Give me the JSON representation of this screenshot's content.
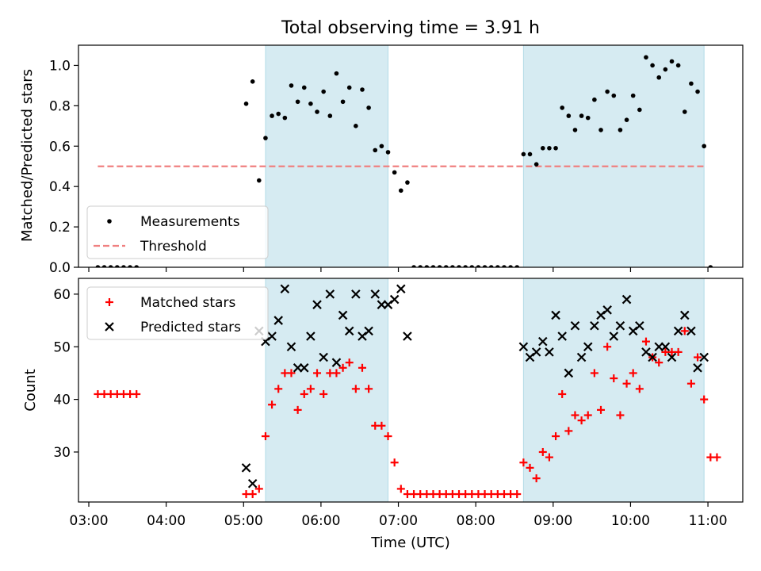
{
  "title": "Total observing time = 3.91 h",
  "colors": {
    "span": "#add8e6",
    "measure": "#000000",
    "threshold": "#f08080",
    "matched": "#ff0000",
    "predicted": "#000000"
  },
  "chart_data": [
    {
      "type": "scatter",
      "panel": "top",
      "ylabel": "Matched/Predicted stars",
      "xlim": [
        "02:52",
        "11:27"
      ],
      "ylim": [
        0,
        1.1
      ],
      "yticks": [
        "0.0",
        "0.2",
        "0.4",
        "0.6",
        "0.8",
        "1.0"
      ],
      "shaded_spans": [
        [
          "05:17",
          "06:52"
        ],
        [
          "08:37",
          "10:57"
        ]
      ],
      "legend": {
        "position": "lower-left",
        "entries": [
          "Measurements",
          "Threshold"
        ]
      },
      "threshold": {
        "name": "Threshold",
        "y": 0.5,
        "x": [
          "03:07",
          "10:59"
        ],
        "style": "dashed"
      },
      "series": [
        {
          "name": "Measurements",
          "marker": "dot",
          "points": [
            [
              "03:07",
              0
            ],
            [
              "03:12",
              0
            ],
            [
              "03:17",
              0
            ],
            [
              "03:22",
              0
            ],
            [
              "03:27",
              0
            ],
            [
              "03:32",
              0
            ],
            [
              "03:37",
              0
            ],
            [
              "05:02",
              0.81
            ],
            [
              "05:07",
              0.92
            ],
            [
              "05:12",
              0.43
            ],
            [
              "05:17",
              0.64
            ],
            [
              "05:22",
              0.75
            ],
            [
              "05:27",
              0.76
            ],
            [
              "05:32",
              0.74
            ],
            [
              "05:37",
              0.9
            ],
            [
              "05:42",
              0.82
            ],
            [
              "05:47",
              0.89
            ],
            [
              "05:52",
              0.81
            ],
            [
              "05:57",
              0.77
            ],
            [
              "06:02",
              0.87
            ],
            [
              "06:07",
              0.75
            ],
            [
              "06:12",
              0.96
            ],
            [
              "06:17",
              0.82
            ],
            [
              "06:22",
              0.89
            ],
            [
              "06:27",
              0.7
            ],
            [
              "06:32",
              0.88
            ],
            [
              "06:37",
              0.79
            ],
            [
              "06:42",
              0.58
            ],
            [
              "06:47",
              0.6
            ],
            [
              "06:52",
              0.57
            ],
            [
              "06:57",
              0.47
            ],
            [
              "07:02",
              0.38
            ],
            [
              "07:07",
              0.42
            ],
            [
              "07:12",
              0
            ],
            [
              "07:17",
              0
            ],
            [
              "07:22",
              0
            ],
            [
              "07:27",
              0
            ],
            [
              "07:32",
              0
            ],
            [
              "07:37",
              0
            ],
            [
              "07:42",
              0
            ],
            [
              "07:47",
              0
            ],
            [
              "07:52",
              0
            ],
            [
              "07:57",
              0
            ],
            [
              "08:02",
              0
            ],
            [
              "08:07",
              0
            ],
            [
              "08:12",
              0
            ],
            [
              "08:17",
              0
            ],
            [
              "08:22",
              0
            ],
            [
              "08:27",
              0
            ],
            [
              "08:32",
              0
            ],
            [
              "08:37",
              0.56
            ],
            [
              "08:42",
              0.56
            ],
            [
              "08:47",
              0.51
            ],
            [
              "08:52",
              0.59
            ],
            [
              "08:57",
              0.59
            ],
            [
              "09:02",
              0.59
            ],
            [
              "09:07",
              0.79
            ],
            [
              "09:12",
              0.75
            ],
            [
              "09:17",
              0.68
            ],
            [
              "09:22",
              0.75
            ],
            [
              "09:27",
              0.74
            ],
            [
              "09:32",
              0.83
            ],
            [
              "09:37",
              0.68
            ],
            [
              "09:42",
              0.87
            ],
            [
              "09:47",
              0.85
            ],
            [
              "09:52",
              0.68
            ],
            [
              "09:57",
              0.73
            ],
            [
              "10:02",
              0.85
            ],
            [
              "10:07",
              0.78
            ],
            [
              "10:12",
              1.04
            ],
            [
              "10:17",
              1.0
            ],
            [
              "10:22",
              0.94
            ],
            [
              "10:27",
              0.98
            ],
            [
              "10:32",
              1.02
            ],
            [
              "10:37",
              1.0
            ],
            [
              "10:42",
              0.77
            ],
            [
              "10:47",
              0.91
            ],
            [
              "10:52",
              0.87
            ],
            [
              "10:57",
              0.6
            ],
            [
              "11:02",
              0
            ]
          ]
        }
      ]
    },
    {
      "type": "scatter",
      "panel": "bottom",
      "xlabel": "Time (UTC)",
      "ylabel": "Count",
      "xlim": [
        "02:52",
        "11:27"
      ],
      "ylim": [
        20.5,
        63
      ],
      "yticks": [
        "30",
        "40",
        "50",
        "60"
      ],
      "xticks": [
        "03:00",
        "04:00",
        "05:00",
        "06:00",
        "07:00",
        "08:00",
        "09:00",
        "10:00",
        "11:00"
      ],
      "shaded_spans": [
        [
          "05:17",
          "06:52"
        ],
        [
          "08:37",
          "10:57"
        ]
      ],
      "legend": {
        "position": "top-left",
        "entries": [
          "Matched stars",
          "Predicted stars"
        ]
      },
      "series": [
        {
          "name": "Matched stars",
          "marker": "plus",
          "points": [
            [
              "03:07",
              41
            ],
            [
              "03:12",
              41
            ],
            [
              "03:17",
              41
            ],
            [
              "03:22",
              41
            ],
            [
              "03:27",
              41
            ],
            [
              "03:32",
              41
            ],
            [
              "03:37",
              41
            ],
            [
              "05:02",
              22
            ],
            [
              "05:07",
              22
            ],
            [
              "05:12",
              23
            ],
            [
              "05:17",
              33
            ],
            [
              "05:22",
              39
            ],
            [
              "05:27",
              42
            ],
            [
              "05:32",
              45
            ],
            [
              "05:37",
              45
            ],
            [
              "05:42",
              38
            ],
            [
              "05:47",
              41
            ],
            [
              "05:52",
              42
            ],
            [
              "05:57",
              45
            ],
            [
              "06:02",
              41
            ],
            [
              "06:07",
              45
            ],
            [
              "06:12",
              45
            ],
            [
              "06:17",
              46
            ],
            [
              "06:22",
              47
            ],
            [
              "06:27",
              42
            ],
            [
              "06:32",
              46
            ],
            [
              "06:37",
              42
            ],
            [
              "06:42",
              35
            ],
            [
              "06:47",
              35
            ],
            [
              "06:52",
              33
            ],
            [
              "06:57",
              28
            ],
            [
              "07:02",
              23
            ],
            [
              "07:07",
              22
            ],
            [
              "07:12",
              22
            ],
            [
              "07:17",
              22
            ],
            [
              "07:22",
              22
            ],
            [
              "07:27",
              22
            ],
            [
              "07:32",
              22
            ],
            [
              "07:37",
              22
            ],
            [
              "07:42",
              22
            ],
            [
              "07:47",
              22
            ],
            [
              "07:52",
              22
            ],
            [
              "07:57",
              22
            ],
            [
              "08:02",
              22
            ],
            [
              "08:07",
              22
            ],
            [
              "08:12",
              22
            ],
            [
              "08:17",
              22
            ],
            [
              "08:22",
              22
            ],
            [
              "08:27",
              22
            ],
            [
              "08:32",
              22
            ],
            [
              "08:37",
              28
            ],
            [
              "08:42",
              27
            ],
            [
              "08:47",
              25
            ],
            [
              "08:52",
              30
            ],
            [
              "08:57",
              29
            ],
            [
              "09:02",
              33
            ],
            [
              "09:07",
              41
            ],
            [
              "09:12",
              34
            ],
            [
              "09:17",
              37
            ],
            [
              "09:22",
              36
            ],
            [
              "09:27",
              37
            ],
            [
              "09:32",
              45
            ],
            [
              "09:37",
              38
            ],
            [
              "09:42",
              50
            ],
            [
              "09:47",
              44
            ],
            [
              "09:52",
              37
            ],
            [
              "09:57",
              43
            ],
            [
              "10:02",
              45
            ],
            [
              "10:07",
              42
            ],
            [
              "10:12",
              51
            ],
            [
              "10:17",
              48
            ],
            [
              "10:22",
              47
            ],
            [
              "10:27",
              49
            ],
            [
              "10:32",
              49
            ],
            [
              "10:37",
              49
            ],
            [
              "10:42",
              53
            ],
            [
              "10:47",
              43
            ],
            [
              "10:52",
              48
            ],
            [
              "10:57",
              40
            ],
            [
              "11:02",
              29
            ],
            [
              "11:07",
              29
            ]
          ]
        },
        {
          "name": "Predicted stars",
          "marker": "x",
          "points": [
            [
              "05:02",
              27
            ],
            [
              "05:07",
              24
            ],
            [
              "05:12",
              53
            ],
            [
              "05:17",
              51
            ],
            [
              "05:22",
              52
            ],
            [
              "05:27",
              55
            ],
            [
              "05:32",
              61
            ],
            [
              "05:37",
              50
            ],
            [
              "05:42",
              46
            ],
            [
              "05:47",
              46
            ],
            [
              "05:52",
              52
            ],
            [
              "05:57",
              58
            ],
            [
              "06:02",
              48
            ],
            [
              "06:07",
              60
            ],
            [
              "06:12",
              47
            ],
            [
              "06:17",
              56
            ],
            [
              "06:22",
              53
            ],
            [
              "06:27",
              60
            ],
            [
              "06:32",
              52
            ],
            [
              "06:37",
              53
            ],
            [
              "06:42",
              60
            ],
            [
              "06:47",
              58
            ],
            [
              "06:52",
              58
            ],
            [
              "06:57",
              59
            ],
            [
              "07:02",
              61
            ],
            [
              "07:07",
              52
            ],
            [
              "08:37",
              50
            ],
            [
              "08:42",
              48
            ],
            [
              "08:47",
              49
            ],
            [
              "08:52",
              51
            ],
            [
              "08:57",
              49
            ],
            [
              "09:02",
              56
            ],
            [
              "09:07",
              52
            ],
            [
              "09:12",
              45
            ],
            [
              "09:17",
              54
            ],
            [
              "09:22",
              48
            ],
            [
              "09:27",
              50
            ],
            [
              "09:32",
              54
            ],
            [
              "09:37",
              56
            ],
            [
              "09:42",
              57
            ],
            [
              "09:47",
              52
            ],
            [
              "09:52",
              54
            ],
            [
              "09:57",
              59
            ],
            [
              "10:02",
              53
            ],
            [
              "10:07",
              54
            ],
            [
              "10:12",
              49
            ],
            [
              "10:17",
              48
            ],
            [
              "10:22",
              50
            ],
            [
              "10:27",
              50
            ],
            [
              "10:32",
              48
            ],
            [
              "10:37",
              53
            ],
            [
              "10:42",
              56
            ],
            [
              "10:47",
              53
            ],
            [
              "10:52",
              46
            ],
            [
              "10:57",
              48
            ]
          ]
        }
      ]
    }
  ]
}
